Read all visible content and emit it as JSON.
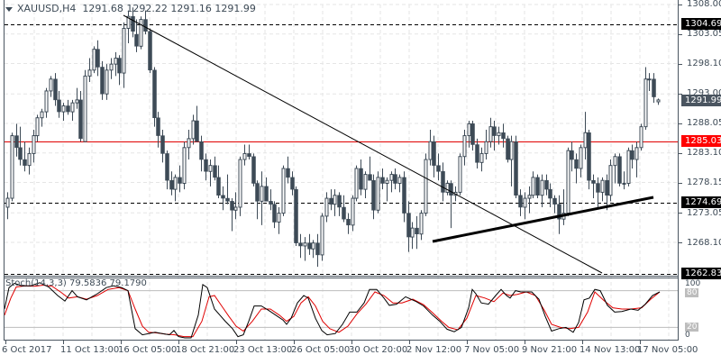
{
  "header": {
    "symbol": "XAUUSD,H4",
    "open": "1291.68",
    "high": "1292.22",
    "low": "1291.16",
    "close": "1291.99"
  },
  "price_axis": {
    "ticks": [
      "1308.00",
      "1303.05",
      "1298.10",
      "1293.00",
      "1288.05",
      "1283.10",
      "1278.15",
      "1273.05",
      "1268.10"
    ],
    "tags": [
      {
        "label": "1304.69",
        "bg": "#000000",
        "kind": "resistance"
      },
      {
        "label": "1291.99",
        "bg": "#4a5560",
        "kind": "current-price"
      },
      {
        "label": "1285.03",
        "bg": "#ff0000",
        "kind": "pivot"
      },
      {
        "label": "1274.69",
        "bg": "#000000",
        "kind": "support"
      },
      {
        "label": "1262.83",
        "bg": "#000000",
        "kind": "support"
      }
    ]
  },
  "time_axis": {
    "labels": [
      "6 Oct 2017",
      "11 Oct 13:00",
      "16 Oct 05:00",
      "18 Oct 21:00",
      "23 Oct 13:00",
      "26 Oct 05:00",
      "30 Oct 20:00",
      "2 Nov 12:00",
      "7 Nov 05:00",
      "9 Nov 21:00",
      "14 Nov 13:00",
      "17 Nov 05:00"
    ]
  },
  "stochastic": {
    "label": "Stoch(14,3,3) 79.5836 79.1790",
    "levels": [
      "100",
      "80",
      "20",
      "0"
    ]
  },
  "colors": {
    "candle": "#3d4a56",
    "pivot_line": "#e00000",
    "signal_line": "#e00000",
    "main_line": "#000000",
    "grid": "#e6e6e6"
  },
  "chart_data": {
    "type": "candlestick",
    "title": "XAUUSD,H4",
    "ylim": [
      1262,
      1308.5
    ],
    "horizontal_lines": [
      1304.69,
      1285.03,
      1274.69,
      1262.83
    ],
    "trendlines": [
      {
        "name": "descending",
        "from": [
          "16 Oct 05:00",
          1306.5
        ],
        "to": [
          "15 Nov",
          1262.83
        ]
      },
      {
        "name": "ascending support",
        "from": [
          "3 Nov",
          1268.8
        ],
        "to": [
          "17 Nov",
          1275.6
        ]
      }
    ],
    "ohlc": [
      [
        1274.0,
        1276.5,
        1272.0,
        1275.5
      ],
      [
        1275.5,
        1286.5,
        1275.0,
        1286.0
      ],
      [
        1286.0,
        1288.0,
        1282.5,
        1284.0
      ],
      [
        1284.0,
        1287.5,
        1281.0,
        1282.0
      ],
      [
        1282.0,
        1285.0,
        1280.0,
        1281.0
      ],
      [
        1281.0,
        1284.0,
        1279.5,
        1283.0
      ],
      [
        1283.0,
        1287.0,
        1281.5,
        1286.0
      ],
      [
        1286.0,
        1289.5,
        1285.0,
        1289.0
      ],
      [
        1289.0,
        1290.5,
        1287.5,
        1290.0
      ],
      [
        1290.0,
        1294.0,
        1289.0,
        1293.5
      ],
      [
        1293.5,
        1296.0,
        1292.5,
        1295.5
      ],
      [
        1295.5,
        1296.5,
        1291.0,
        1292.0
      ],
      [
        1292.0,
        1293.5,
        1289.0,
        1290.0
      ],
      [
        1290.0,
        1291.5,
        1288.5,
        1291.0
      ],
      [
        1291.0,
        1292.0,
        1289.5,
        1290.0
      ],
      [
        1290.0,
        1292.0,
        1288.5,
        1291.5
      ],
      [
        1291.5,
        1294.0,
        1290.5,
        1292.0
      ],
      [
        1292.0,
        1293.5,
        1285.0,
        1285.5
      ],
      [
        1285.0,
        1297.0,
        1285.0,
        1296.0
      ],
      [
        1296.0,
        1299.0,
        1295.0,
        1297.0
      ],
      [
        1297.0,
        1301.0,
        1296.5,
        1300.5
      ],
      [
        1300.5,
        1302.0,
        1296.0,
        1297.5
      ],
      [
        1297.5,
        1298.5,
        1292.0,
        1293.0
      ],
      [
        1293.0,
        1298.0,
        1292.0,
        1297.0
      ],
      [
        1297.0,
        1299.0,
        1295.5,
        1298.0
      ],
      [
        1298.0,
        1300.0,
        1296.0,
        1299.0
      ],
      [
        1299.0,
        1299.5,
        1294.5,
        1296.5
      ],
      [
        1296.5,
        1305.0,
        1294.0,
        1304.0
      ],
      [
        1304.0,
        1307.0,
        1301.5,
        1306.0
      ],
      [
        1306.0,
        1307.5,
        1302.5,
        1303.5
      ],
      [
        1303.0,
        1305.5,
        1300.0,
        1301.0
      ],
      [
        1301.0,
        1306.0,
        1300.5,
        1305.5
      ],
      [
        1305.5,
        1307.0,
        1303.0,
        1303.5
      ],
      [
        1303.5,
        1304.0,
        1296.5,
        1297.0
      ],
      [
        1297.0,
        1297.5,
        1287.5,
        1289.0
      ],
      [
        1289.0,
        1290.0,
        1284.0,
        1286.0
      ],
      [
        1286.0,
        1287.0,
        1281.5,
        1283.0
      ],
      [
        1283.0,
        1283.5,
        1277.0,
        1278.5
      ],
      [
        1278.5,
        1280.0,
        1276.0,
        1277.0
      ],
      [
        1277.0,
        1279.5,
        1275.0,
        1279.0
      ],
      [
        1279.0,
        1281.0,
        1276.5,
        1278.0
      ],
      [
        1278.0,
        1285.0,
        1277.0,
        1284.0
      ],
      [
        1284.0,
        1287.0,
        1282.0,
        1285.5
      ],
      [
        1285.5,
        1289.5,
        1284.5,
        1288.5
      ],
      [
        1288.5,
        1291.0,
        1285.0,
        1285.0
      ],
      [
        1285.0,
        1286.0,
        1280.0,
        1282.0
      ],
      [
        1282.0,
        1283.0,
        1278.5,
        1280.0
      ],
      [
        1280.0,
        1282.0,
        1277.5,
        1281.0
      ],
      [
        1281.0,
        1282.5,
        1278.5,
        1279.0
      ],
      [
        1279.0,
        1281.0,
        1275.5,
        1276.0
      ],
      [
        1276.0,
        1277.5,
        1273.5,
        1275.5
      ],
      [
        1275.5,
        1279.5,
        1274.5,
        1275.0
      ],
      [
        1275.0,
        1275.5,
        1270.0,
        1273.5
      ],
      [
        1273.5,
        1276.5,
        1272.0,
        1274.0
      ],
      [
        1274.0,
        1282.5,
        1272.5,
        1282.0
      ],
      [
        1282.0,
        1284.5,
        1281.0,
        1283.0
      ],
      [
        1283.0,
        1284.5,
        1282.0,
        1282.5
      ],
      [
        1282.5,
        1283.0,
        1277.5,
        1278.0
      ],
      [
        1278.0,
        1278.5,
        1272.0,
        1275.0
      ],
      [
        1275.0,
        1280.0,
        1271.0,
        1277.5
      ],
      [
        1277.5,
        1279.0,
        1275.0,
        1275.0
      ],
      [
        1275.0,
        1277.0,
        1273.5,
        1274.5
      ],
      [
        1274.5,
        1275.0,
        1270.5,
        1271.5
      ],
      [
        1271.5,
        1274.0,
        1269.5,
        1273.0
      ],
      [
        1273.0,
        1281.0,
        1272.5,
        1280.5
      ],
      [
        1280.5,
        1282.5,
        1278.0,
        1279.0
      ],
      [
        1279.0,
        1280.0,
        1276.0,
        1277.0
      ],
      [
        1277.0,
        1277.5,
        1267.5,
        1268.0
      ],
      [
        1268.0,
        1269.5,
        1265.5,
        1267.5
      ],
      [
        1267.5,
        1269.0,
        1265.0,
        1268.0
      ],
      [
        1268.0,
        1269.5,
        1266.0,
        1267.0
      ],
      [
        1267.0,
        1268.5,
        1265.5,
        1268.0
      ],
      [
        1268.0,
        1269.5,
        1264.0,
        1266.0
      ],
      [
        1266.0,
        1273.0,
        1265.0,
        1272.5
      ],
      [
        1272.5,
        1276.5,
        1271.5,
        1275.5
      ],
      [
        1275.5,
        1277.0,
        1273.5,
        1274.5
      ],
      [
        1274.5,
        1277.0,
        1272.5,
        1276.0
      ],
      [
        1276.0,
        1276.5,
        1272.5,
        1274.0
      ],
      [
        1274.0,
        1276.0,
        1271.5,
        1272.0
      ],
      [
        1272.0,
        1273.0,
        1269.5,
        1271.0
      ],
      [
        1271.0,
        1276.0,
        1270.0,
        1275.5
      ],
      [
        1275.5,
        1281.0,
        1275.0,
        1280.5
      ],
      [
        1280.5,
        1282.0,
        1276.0,
        1277.0
      ],
      [
        1277.0,
        1280.0,
        1275.5,
        1279.5
      ],
      [
        1279.5,
        1282.5,
        1278.5,
        1278.5
      ],
      [
        1278.5,
        1279.5,
        1272.0,
        1273.5
      ],
      [
        1273.5,
        1280.0,
        1273.0,
        1279.0
      ],
      [
        1279.0,
        1280.5,
        1277.0,
        1278.0
      ],
      [
        1278.0,
        1279.0,
        1275.0,
        1278.5
      ],
      [
        1278.5,
        1280.0,
        1276.5,
        1279.5
      ],
      [
        1279.5,
        1280.5,
        1277.0,
        1278.0
      ],
      [
        1278.0,
        1279.5,
        1276.5,
        1279.0
      ],
      [
        1279.0,
        1280.0,
        1271.5,
        1273.0
      ],
      [
        1273.0,
        1275.0,
        1266.5,
        1269.0
      ],
      [
        1269.0,
        1271.5,
        1267.0,
        1270.5
      ],
      [
        1270.5,
        1272.5,
        1267.0,
        1269.5
      ],
      [
        1269.5,
        1273.5,
        1268.5,
        1273.0
      ],
      [
        1273.0,
        1283.0,
        1272.5,
        1282.0
      ],
      [
        1282.0,
        1287.0,
        1281.0,
        1285.0
      ],
      [
        1285.0,
        1286.0,
        1279.0,
        1281.0
      ],
      [
        1281.0,
        1283.0,
        1278.5,
        1280.0
      ],
      [
        1280.0,
        1281.5,
        1275.0,
        1276.5
      ],
      [
        1276.5,
        1278.5,
        1276.0,
        1278.0
      ],
      [
        1278.0,
        1278.5,
        1270.5,
        1276.0
      ],
      [
        1276.0,
        1277.5,
        1275.0,
        1276.5
      ],
      [
        1276.5,
        1283.0,
        1276.0,
        1282.5
      ],
      [
        1282.5,
        1287.0,
        1281.0,
        1286.0
      ],
      [
        1286.0,
        1288.5,
        1284.0,
        1288.0
      ],
      [
        1288.0,
        1288.5,
        1283.5,
        1284.5
      ],
      [
        1284.5,
        1285.5,
        1280.5,
        1281.5
      ],
      [
        1281.5,
        1284.0,
        1280.0,
        1283.0
      ],
      [
        1283.0,
        1287.0,
        1282.0,
        1285.0
      ],
      [
        1285.0,
        1289.0,
        1284.0,
        1287.5
      ],
      [
        1287.5,
        1288.5,
        1283.5,
        1286.0
      ],
      [
        1286.0,
        1287.5,
        1284.5,
        1286.5
      ],
      [
        1286.5,
        1288.0,
        1284.0,
        1285.5
      ],
      [
        1285.5,
        1286.0,
        1281.5,
        1282.0
      ],
      [
        1282.0,
        1286.0,
        1277.5,
        1285.0
      ],
      [
        1285.0,
        1286.0,
        1275.5,
        1276.0
      ],
      [
        1276.0,
        1277.0,
        1272.5,
        1274.0
      ],
      [
        1274.0,
        1276.5,
        1272.0,
        1275.5
      ],
      [
        1275.5,
        1277.5,
        1273.0,
        1276.0
      ],
      [
        1276.0,
        1280.0,
        1275.5,
        1279.0
      ],
      [
        1279.0,
        1279.5,
        1275.5,
        1276.0
      ],
      [
        1276.0,
        1279.5,
        1274.0,
        1278.5
      ],
      [
        1278.5,
        1279.5,
        1276.0,
        1277.0
      ],
      [
        1277.0,
        1278.0,
        1274.0,
        1275.5
      ],
      [
        1275.5,
        1276.0,
        1273.0,
        1274.5
      ],
      [
        1274.5,
        1276.0,
        1269.5,
        1272.0
      ],
      [
        1272.0,
        1277.0,
        1271.0,
        1273.0
      ],
      [
        1273.0,
        1284.0,
        1272.5,
        1283.5
      ],
      [
        1283.5,
        1285.0,
        1280.0,
        1282.0
      ],
      [
        1282.0,
        1283.0,
        1278.0,
        1280.5
      ],
      [
        1280.5,
        1284.5,
        1279.0,
        1284.0
      ],
      [
        1284.0,
        1290.0,
        1282.0,
        1286.5
      ],
      [
        1286.5,
        1287.0,
        1277.0,
        1278.5
      ],
      [
        1278.5,
        1279.5,
        1275.5,
        1278.0
      ],
      [
        1278.0,
        1279.0,
        1274.0,
        1276.5
      ],
      [
        1276.5,
        1279.0,
        1275.0,
        1278.5
      ],
      [
        1278.5,
        1279.5,
        1273.5,
        1276.0
      ],
      [
        1276.0,
        1282.0,
        1275.0,
        1281.0
      ],
      [
        1281.0,
        1283.0,
        1278.0,
        1282.5
      ],
      [
        1282.5,
        1283.0,
        1277.5,
        1278.0
      ],
      [
        1278.0,
        1280.0,
        1277.0,
        1278.0
      ],
      [
        1278.0,
        1284.0,
        1277.5,
        1283.5
      ],
      [
        1283.5,
        1284.5,
        1280.5,
        1282.0
      ],
      [
        1282.0,
        1285.0,
        1279.0,
        1284.0
      ],
      [
        1284.0,
        1288.0,
        1283.5,
        1287.5
      ],
      [
        1287.5,
        1297.5,
        1287.0,
        1295.5
      ],
      [
        1295.5,
        1296.5,
        1293.5,
        1295.5
      ],
      [
        1295.5,
        1296.5,
        1291.5,
        1292.5
      ],
      [
        1291.68,
        1292.22,
        1291.16,
        1291.99
      ]
    ]
  }
}
